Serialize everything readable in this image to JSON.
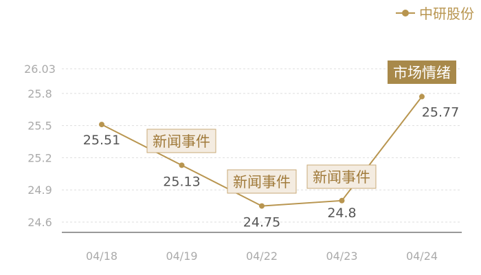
{
  "colors": {
    "series": "#b8954f",
    "axis_text": "#aaaaaa",
    "label_text": "#555555",
    "grid": "#dddddd",
    "baseline": "#333333",
    "annotation_fill": "#f4ece1",
    "annotation_border": "#c9aa77",
    "annotation_text": "#a07a3a",
    "highlight_fill": "#a8894a",
    "highlight_text": "#ffffff"
  },
  "legend": {
    "label": "中研股份",
    "marker": "line-with-dot"
  },
  "chart_data": {
    "type": "line",
    "categories": [
      "04/18",
      "04/19",
      "04/22",
      "04/23",
      "04/24"
    ],
    "series": [
      {
        "name": "中研股份",
        "values": [
          25.51,
          25.13,
          24.75,
          24.8,
          25.77
        ]
      }
    ],
    "ylim": [
      24.6,
      26.03
    ],
    "yticks": [
      24.6,
      24.9,
      25.2,
      25.5,
      25.8,
      26.03
    ],
    "ytick_labels": [
      "24.6",
      "24.9",
      "25.2",
      "25.5",
      "25.8",
      "26.03"
    ],
    "value_labels": [
      "25.51",
      "25.13",
      "24.75",
      "24.8",
      "25.77"
    ],
    "grid": "horizontal-dashed",
    "legend_position": "top-right",
    "annotations": [
      {
        "category_index": 1,
        "text": "新闻事件",
        "style": "light"
      },
      {
        "category_index": 2,
        "text": "新闻事件",
        "style": "light"
      },
      {
        "category_index": 3,
        "text": "新闻事件",
        "style": "light"
      },
      {
        "category_index": 4,
        "text": "市场情绪",
        "style": "dark"
      }
    ]
  }
}
